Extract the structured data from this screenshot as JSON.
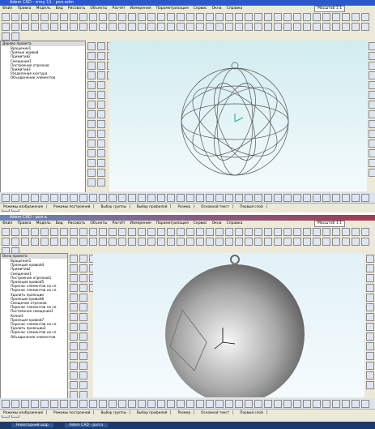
{
  "windows": [
    {
      "title": "Adem CAD - ятку 11 - рол.adm",
      "menu": [
        "Файл",
        "Правка",
        "Модель",
        "Вид",
        "Рисовать",
        "Объекты",
        "Расчёт",
        "Измерения",
        "Параметризация",
        "Сервис",
        "Окна",
        "Справка"
      ],
      "tree_title": "Дерево проекта",
      "tree_items": [
        "Вращение1",
        "Прямые кривой",
        "Примитив2",
        "Смещение1",
        "Построение отрезков",
        "Примитив3",
        "Разделение контура",
        "Объединение элементов"
      ],
      "scale": "Масштаб 1:1",
      "status": [
        "Режимы изображения",
        "Режимы построений",
        "Выбор группы",
        "Выбор профилей",
        "Размер",
        "Основной текст",
        "Первый слой"
      ]
    },
    {
      "title": "Adem CAD - рол.a",
      "menu": [
        "Файл",
        "Правка",
        "Модель",
        "Вид",
        "Рисовать",
        "Объекты",
        "Расчёт",
        "Измерения",
        "Параметризация",
        "Сервис",
        "Окна",
        "Справка"
      ],
      "tree_title": "Окно проекта",
      "tree_items": [
        "Вращение1",
        "Проекция кривой4",
        "Примитив2",
        "Смещение1",
        "Построение отрезков1",
        "Проекция кривой5",
        "Перенос элементов на сл.",
        "Перенос элементов на сл.",
        "Удалить проекции",
        "Проекция кривой6",
        "Смещение отрезков",
        "Перенос элементов на сл.",
        "Постоянное смещение2",
        "Копия1",
        "Проекция кривой7",
        "Перенос элементов на сл.",
        "Удалить проекции2",
        "Перенос элементов на сл.",
        "Объединение элементов"
      ],
      "scale": "Масштаб 1:1",
      "status": [
        "Режимы изображения",
        "Режимы построений",
        "Выбор группы",
        "Выбор профилей",
        "Размер",
        "Основной текст",
        "Первый слой"
      ]
    }
  ],
  "taskbar": {
    "items": [
      "Новогодний шар",
      "Adem CAD - рол.a"
    ]
  }
}
